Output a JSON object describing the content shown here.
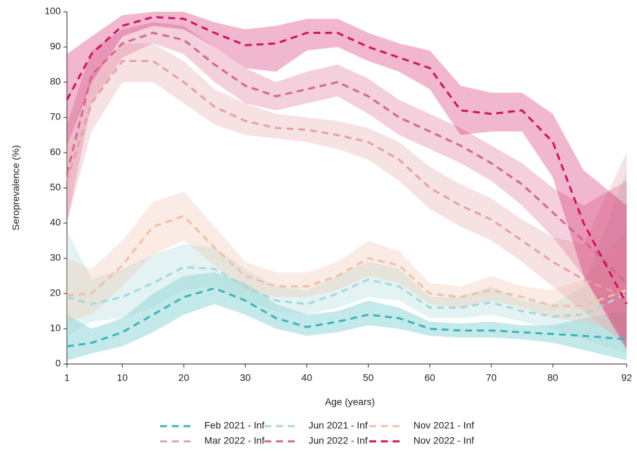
{
  "chart_data": {
    "type": "line",
    "x_label": "Age (years)",
    "y_label": "Seroprevalence (%)",
    "x": [
      1,
      5,
      10,
      15,
      20,
      25,
      30,
      35,
      40,
      45,
      50,
      55,
      60,
      65,
      70,
      75,
      80,
      85,
      92
    ],
    "xlim": [
      1,
      92
    ],
    "xticks": [
      1,
      10,
      20,
      30,
      40,
      50,
      60,
      70,
      80,
      92
    ],
    "ylim": [
      0,
      100
    ],
    "yticks": [
      0,
      10,
      20,
      30,
      40,
      50,
      60,
      70,
      80,
      90,
      100
    ],
    "grid": false,
    "legend": "bottom",
    "series": [
      {
        "name": "Feb 2021 - Inf",
        "color": "#3bb5b8",
        "values": [
          5,
          6,
          9,
          14,
          19,
          21.5,
          18,
          13,
          10.5,
          12,
          14,
          13,
          10,
          9.5,
          9.5,
          9,
          8.5,
          8,
          7
        ],
        "lower": [
          1,
          3,
          5,
          9,
          14,
          17,
          14,
          10,
          8,
          9,
          11,
          10,
          8,
          7.5,
          7.5,
          7,
          6,
          4,
          1
        ],
        "upper": [
          14,
          10,
          13,
          20,
          25,
          26,
          23,
          17,
          14,
          15,
          18,
          16,
          12,
          11.5,
          12,
          11,
          11,
          13,
          15
        ]
      },
      {
        "name": "Jun 2021 - Inf",
        "color": "#a3d8d8",
        "values": [
          19,
          17,
          19,
          23,
          27.5,
          27,
          22,
          18,
          17,
          20,
          24,
          22,
          16,
          16,
          17.5,
          15,
          13.5,
          14,
          20
        ],
        "lower": [
          8,
          12,
          13,
          16,
          21,
          22,
          18,
          15,
          14,
          16,
          19,
          18,
          13,
          13,
          14,
          12,
          10,
          7,
          3
        ],
        "upper": [
          38,
          24,
          27,
          31,
          34,
          33,
          27,
          22,
          21,
          25,
          29,
          27,
          19,
          19,
          22,
          18,
          17,
          22,
          55
        ]
      },
      {
        "name": "Nov 2021 - Inf",
        "color": "#efbfa6",
        "values": [
          19.5,
          20,
          28,
          39,
          42,
          33,
          25,
          22,
          22,
          25,
          30,
          28,
          20,
          19,
          21,
          19,
          16.5,
          16.5,
          21
        ],
        "lower": [
          12,
          14,
          22,
          31,
          35,
          28,
          21,
          19,
          19,
          21,
          25,
          23,
          17,
          16,
          18,
          16,
          13,
          12,
          8
        ],
        "upper": [
          30,
          27,
          35,
          46,
          49,
          39,
          29,
          26,
          26,
          29,
          35,
          32,
          23,
          22,
          25,
          22,
          21,
          24,
          38
        ]
      },
      {
        "name": "Mar 2022 - Inf",
        "color": "#e6a0a3",
        "values": [
          52,
          74,
          86,
          86,
          80,
          73,
          69,
          67,
          66.5,
          65,
          63,
          58,
          50,
          45,
          41,
          35,
          29,
          24,
          19
        ],
        "lower": [
          40,
          66,
          80,
          80,
          74,
          68,
          65,
          64,
          63,
          61,
          58,
          52,
          44,
          39,
          35,
          29,
          22,
          15,
          5
        ],
        "upper": [
          62,
          82,
          91,
          91,
          86,
          78,
          74,
          71,
          70,
          69,
          67,
          63,
          56,
          51,
          47,
          41,
          36,
          34,
          60
        ]
      },
      {
        "name": "Jun 2022 - Inf",
        "color": "#d7658a",
        "values": [
          54,
          82,
          91,
          94,
          92,
          85,
          79,
          76,
          78,
          80,
          76,
          70,
          66,
          62,
          57,
          51,
          43,
          35,
          23
        ],
        "lower": [
          40,
          74,
          87,
          91,
          88,
          80,
          74,
          72,
          74,
          76,
          71,
          65,
          61,
          57,
          52,
          45,
          36,
          25,
          5
        ],
        "upper": [
          68,
          89,
          95,
          97,
          96,
          90,
          84,
          80,
          83,
          85,
          81,
          75,
          71,
          67,
          62,
          57,
          50,
          45,
          52
        ]
      },
      {
        "name": "Nov 2022 - Inf",
        "color": "#cf1160",
        "values": [
          75,
          88,
          96,
          98.5,
          98,
          94,
          90.5,
          91,
          94,
          94,
          90,
          87,
          84,
          72,
          71,
          72,
          63,
          40,
          17
        ],
        "lower": [
          62,
          80,
          93,
          96,
          95,
          90,
          84,
          83,
          89,
          90,
          86,
          83,
          78,
          65,
          66,
          66,
          53,
          25,
          4
        ],
        "upper": [
          88,
          93,
          99,
          100,
          100,
          97,
          95,
          96,
          98,
          98,
          94,
          91,
          89,
          79,
          77,
          77,
          71,
          55,
          45
        ]
      }
    ]
  }
}
